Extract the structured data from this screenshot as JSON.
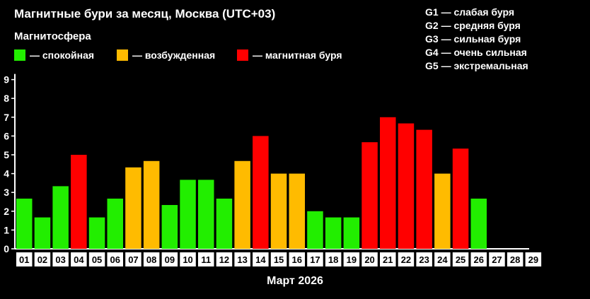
{
  "header": {
    "title": "Магнитные бури за месяц, Москва (UTC+03)",
    "subtitle": "Магнитосфера"
  },
  "legend": [
    {
      "label": "— спокойная",
      "color": "#22ee00"
    },
    {
      "label": "— возбужденная",
      "color": "#ffbb00"
    },
    {
      "label": "— магнитная буря",
      "color": "#ff0000"
    }
  ],
  "storm_scale": [
    "G1 — слабая буря",
    "G2 — средняя буря",
    "G3 — сильная буря",
    "G4 — очень сильная",
    "G5 — экстремальная"
  ],
  "chart_data": {
    "type": "bar",
    "title": "Магнитные бури за месяц, Москва (UTC+03)",
    "xlabel": "Март 2026",
    "ylabel": "",
    "ylim": [
      0,
      9
    ],
    "yticks": [
      "0",
      "1",
      "2",
      "3",
      "4",
      "5",
      "6",
      "7",
      "8",
      "9"
    ],
    "grid": false,
    "legend_position": "top-left",
    "categories": [
      "01",
      "02",
      "03",
      "04",
      "05",
      "06",
      "07",
      "08",
      "09",
      "10",
      "11",
      "12",
      "13",
      "14",
      "15",
      "16",
      "17",
      "18",
      "19",
      "20",
      "21",
      "22",
      "23",
      "24",
      "25",
      "26",
      "27",
      "28",
      "29"
    ],
    "values": [
      2.67,
      1.67,
      3.33,
      5,
      1.67,
      2.67,
      4.33,
      4.67,
      2.33,
      3.67,
      3.67,
      2.67,
      4.67,
      6,
      4,
      4,
      2,
      1.67,
      1.67,
      5.67,
      7,
      6.67,
      6.33,
      4,
      5.33,
      2.67,
      null,
      null,
      null
    ],
    "status": [
      "calm",
      "calm",
      "calm",
      "storm",
      "calm",
      "calm",
      "active",
      "active",
      "calm",
      "calm",
      "calm",
      "calm",
      "active",
      "storm",
      "active",
      "active",
      "calm",
      "calm",
      "calm",
      "storm",
      "storm",
      "storm",
      "storm",
      "active",
      "storm",
      "calm",
      null,
      null,
      null
    ],
    "colors": {
      "calm": "#22ee00",
      "active": "#ffbb00",
      "storm": "#ff0000"
    }
  }
}
